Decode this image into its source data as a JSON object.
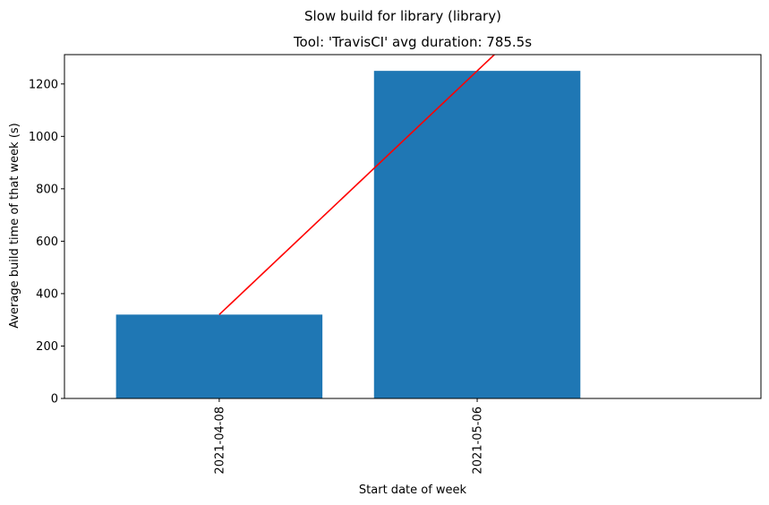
{
  "chart_data": {
    "type": "bar",
    "suptitle": "Slow build for library (library)",
    "title": "Tool: 'TravisCI' avg duration: 785.5s",
    "xlabel": "Start date of week",
    "ylabel": "Average build time of that week (s)",
    "categories": [
      "2021-04-08",
      "2021-05-06"
    ],
    "values": [
      320,
      1250
    ],
    "bar_color": "#1f77b4",
    "trend_line": {
      "color": "#ff0000",
      "description": "linear trend through bar values",
      "points": [
        {
          "x": "2021-04-08",
          "y": 320
        },
        {
          "x": "2021-05-06",
          "y": 1250
        }
      ]
    },
    "ylim": [
      0,
      1312
    ],
    "yticks": [
      0,
      200,
      400,
      600,
      800,
      1000,
      1200
    ],
    "grid": false,
    "legend": "none"
  }
}
